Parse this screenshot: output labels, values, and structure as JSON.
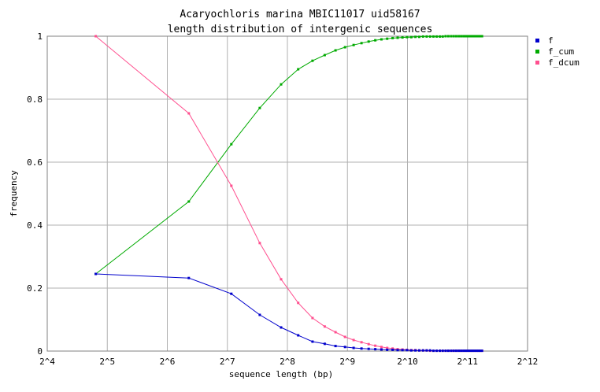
{
  "chart_data": {
    "type": "line",
    "title": [
      "Acaryochloris marina MBIC11017 uid58167",
      "length distribution of intergenic sequences"
    ],
    "xlabel": "sequence length (bp)",
    "ylabel": "frequency",
    "x_scale": "log2",
    "xlim": [
      16,
      4096
    ],
    "ylim": [
      0,
      1
    ],
    "grid": true,
    "legend_position": "top-right",
    "x_ticks": [
      {
        "value": 16,
        "label": "2^4"
      },
      {
        "value": 32,
        "label": "2^5"
      },
      {
        "value": 64,
        "label": "2^6"
      },
      {
        "value": 128,
        "label": "2^7"
      },
      {
        "value": 256,
        "label": "2^8"
      },
      {
        "value": 512,
        "label": "2^9"
      },
      {
        "value": 1024,
        "label": "2^10"
      },
      {
        "value": 2048,
        "label": "2^11"
      },
      {
        "value": 4096,
        "label": "2^12"
      }
    ],
    "y_ticks": [
      {
        "value": 0,
        "label": "0"
      },
      {
        "value": 0.2,
        "label": "0.2"
      },
      {
        "value": 0.4,
        "label": "0.4"
      },
      {
        "value": 0.6,
        "label": "0.6"
      },
      {
        "value": 0.8,
        "label": "0.8"
      },
      {
        "value": 1,
        "label": "1"
      }
    ],
    "x": [
      28,
      82,
      134,
      186,
      238,
      290,
      342,
      394,
      446,
      498,
      550,
      602,
      654,
      706,
      758,
      810,
      862,
      914,
      966,
      1018,
      1070,
      1122,
      1174,
      1226,
      1278,
      1330,
      1382,
      1434,
      1486,
      1538,
      1590,
      1642,
      1694,
      1746,
      1798,
      1850,
      1902,
      1954,
      2006,
      2058,
      2110,
      2162,
      2214,
      2266,
      2318,
      2370,
      2422
    ],
    "series": [
      {
        "name": "f",
        "color": "#0000cc",
        "values": [
          0.245,
          0.232,
          0.182,
          0.115,
          0.075,
          0.05,
          0.03,
          0.023,
          0.016,
          0.013,
          0.01,
          0.008,
          0.007,
          0.006,
          0.005,
          0.004,
          0.004,
          0.003,
          0.003,
          0.003,
          0.002,
          0.002,
          0.002,
          0.002,
          0.002,
          0.002,
          0.001,
          0.001,
          0.001,
          0.001,
          0.001,
          0.001,
          0.001,
          0.001,
          0.001,
          0.001,
          0.001,
          0.001,
          0.001,
          0.001,
          0.001,
          0.001,
          0.001,
          0.001,
          0.001,
          0.001,
          0.001
        ]
      },
      {
        "name": "f_cum",
        "color": "#00aa00",
        "values": [
          0.245,
          0.475,
          0.657,
          0.772,
          0.847,
          0.895,
          0.922,
          0.94,
          0.955,
          0.965,
          0.972,
          0.978,
          0.983,
          0.987,
          0.99,
          0.992,
          0.994,
          0.995,
          0.996,
          0.997,
          0.997,
          0.998,
          0.998,
          0.999,
          0.999,
          0.999,
          0.999,
          0.999,
          0.999,
          0.999,
          1.0,
          1.0,
          1.0,
          1.0,
          1.0,
          1.0,
          1.0,
          1.0,
          1.0,
          1.0,
          1.0,
          1.0,
          1.0,
          1.0,
          1.0,
          1.0,
          1.0
        ]
      },
      {
        "name": "f_dcum",
        "color": "#ff4f8f",
        "values": [
          1.0,
          0.755,
          0.525,
          0.343,
          0.228,
          0.153,
          0.105,
          0.078,
          0.06,
          0.045,
          0.035,
          0.028,
          0.022,
          0.017,
          0.013,
          0.01,
          0.008,
          0.006,
          0.005,
          0.004,
          0.003,
          0.003,
          0.002,
          0.002,
          0.002,
          0.001,
          0.001,
          0.001,
          0.001,
          0.001,
          0.001,
          0.001,
          0.001,
          0.001,
          0.001,
          0.001,
          0.001,
          0.001,
          0.001,
          0.001,
          0.001,
          0.001,
          0.001,
          0.001,
          0.001,
          0.001,
          0.001
        ]
      }
    ]
  }
}
